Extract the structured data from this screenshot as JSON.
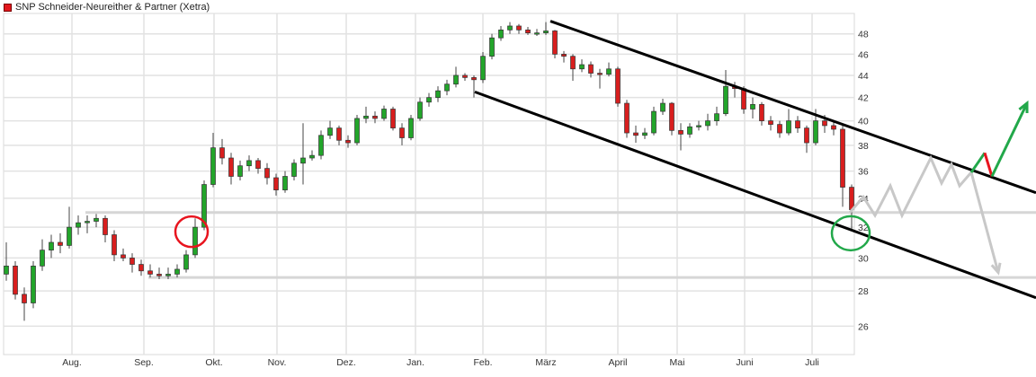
{
  "title": "SNP Schneider-Neureither & Partner (Xetra)",
  "colors": {
    "up": "#22a52a",
    "down": "#d81e1e",
    "grid": "#e2e2e2",
    "channel": "#000000",
    "scenario": "#c8c8c8",
    "bull": "#22a84a",
    "bear_step": "#e8141e",
    "mark_red": "#e8141e",
    "mark_green": "#22a84a"
  },
  "chart_data": {
    "type": "candlestick",
    "title": "SNP Schneider-Neureither & Partner (Xetra)",
    "y_scale": "log",
    "ylim": [
      24.5,
      50.1
    ],
    "y_axis_position": "right",
    "grid": true,
    "y_ticks": [
      "26",
      "28",
      "30",
      "32",
      "34",
      "36",
      "38",
      "40",
      "42",
      "44",
      "46",
      "48"
    ],
    "x_ticks": [
      {
        "label": "Aug.",
        "candle": 7.3
      },
      {
        "label": "Sep.",
        "candle": 15.3
      },
      {
        "label": "Okt.",
        "candle": 23.1
      },
      {
        "label": "Nov.",
        "candle": 30.1
      },
      {
        "label": "Dez.",
        "candle": 37.8
      },
      {
        "label": "Jan.",
        "candle": 45.5
      },
      {
        "label": "Feb.",
        "candle": 53
      },
      {
        "label": "März",
        "candle": 60
      },
      {
        "label": "April",
        "candle": 68
      },
      {
        "label": "Mai",
        "candle": 74.6
      },
      {
        "label": "Juni",
        "candle": 82.1
      },
      {
        "label": "Juli",
        "candle": 89.6
      }
    ],
    "ohlc": [
      [
        29.0,
        31.0,
        28.6,
        29.5
      ],
      [
        29.5,
        29.8,
        27.5,
        27.8
      ],
      [
        27.8,
        28.2,
        26.3,
        27.3
      ],
      [
        27.3,
        29.8,
        27.0,
        29.5
      ],
      [
        29.5,
        31.2,
        29.2,
        30.5
      ],
      [
        30.5,
        31.5,
        30.0,
        31.0
      ],
      [
        31.0,
        31.6,
        30.3,
        30.8
      ],
      [
        30.8,
        33.4,
        30.6,
        32.0
      ],
      [
        32.0,
        32.8,
        31.5,
        32.3
      ],
      [
        32.3,
        32.8,
        31.6,
        32.4
      ],
      [
        32.4,
        32.9,
        32.0,
        32.6
      ],
      [
        32.6,
        32.8,
        31.0,
        31.5
      ],
      [
        31.5,
        31.8,
        29.8,
        30.2
      ],
      [
        30.2,
        30.6,
        29.8,
        30.0
      ],
      [
        30.0,
        30.3,
        29.1,
        29.6
      ],
      [
        29.6,
        29.9,
        28.9,
        29.2
      ],
      [
        29.2,
        29.6,
        28.8,
        29.0
      ],
      [
        29.0,
        29.4,
        28.7,
        28.9
      ],
      [
        28.9,
        29.4,
        28.7,
        29.0
      ],
      [
        29.0,
        29.6,
        28.8,
        29.3
      ],
      [
        29.3,
        30.5,
        29.1,
        30.2
      ],
      [
        30.2,
        32.6,
        30.0,
        32.0
      ],
      [
        32.0,
        35.3,
        31.8,
        35.0
      ],
      [
        35.0,
        39.0,
        34.8,
        37.8
      ],
      [
        37.8,
        38.5,
        36.5,
        37.0
      ],
      [
        37.0,
        37.4,
        35.0,
        35.6
      ],
      [
        35.6,
        36.8,
        35.3,
        36.4
      ],
      [
        36.4,
        37.2,
        36.0,
        36.8
      ],
      [
        36.8,
        37.0,
        35.8,
        36.2
      ],
      [
        36.2,
        36.6,
        35.0,
        35.5
      ],
      [
        35.5,
        35.8,
        34.2,
        34.6
      ],
      [
        34.6,
        36.0,
        34.4,
        35.6
      ],
      [
        35.6,
        36.9,
        35.3,
        36.6
      ],
      [
        36.6,
        39.8,
        35.0,
        37.0
      ],
      [
        37.0,
        37.6,
        36.8,
        37.2
      ],
      [
        37.2,
        39.2,
        36.9,
        38.8
      ],
      [
        38.8,
        40.0,
        38.5,
        39.4
      ],
      [
        39.4,
        39.6,
        38.0,
        38.4
      ],
      [
        38.4,
        38.8,
        37.8,
        38.2
      ],
      [
        38.2,
        40.5,
        38.0,
        40.2
      ],
      [
        40.2,
        41.2,
        39.8,
        40.4
      ],
      [
        40.4,
        40.8,
        39.8,
        40.2
      ],
      [
        40.2,
        41.3,
        40.0,
        41.0
      ],
      [
        41.0,
        41.2,
        39.2,
        39.4
      ],
      [
        39.4,
        39.8,
        38.0,
        38.6
      ],
      [
        38.6,
        40.5,
        38.4,
        40.2
      ],
      [
        40.2,
        42.0,
        40.0,
        41.6
      ],
      [
        41.6,
        42.4,
        41.2,
        42.0
      ],
      [
        42.0,
        43.0,
        41.6,
        42.6
      ],
      [
        42.6,
        43.6,
        42.2,
        43.2
      ],
      [
        43.2,
        44.8,
        42.9,
        44.0
      ],
      [
        44.0,
        44.2,
        43.5,
        43.8
      ],
      [
        43.8,
        44.0,
        42.0,
        43.6
      ],
      [
        43.6,
        46.2,
        43.3,
        45.8
      ],
      [
        45.8,
        48.0,
        45.5,
        47.6
      ],
      [
        47.6,
        48.8,
        47.3,
        48.4
      ],
      [
        48.4,
        49.2,
        48.0,
        48.8
      ],
      [
        48.8,
        49.0,
        48.0,
        48.4
      ],
      [
        48.4,
        48.7,
        47.9,
        48.1
      ],
      [
        48.1,
        48.5,
        47.8,
        48.1
      ],
      [
        48.1,
        49.2,
        47.9,
        48.3
      ],
      [
        48.3,
        48.4,
        45.6,
        46.0
      ],
      [
        46.0,
        46.3,
        45.2,
        45.8
      ],
      [
        45.8,
        46.0,
        43.5,
        44.6
      ],
      [
        44.6,
        45.5,
        44.3,
        45.0
      ],
      [
        45.0,
        45.3,
        43.8,
        44.2
      ],
      [
        44.2,
        44.6,
        42.8,
        44.1
      ],
      [
        44.1,
        45.2,
        43.9,
        44.6
      ],
      [
        44.6,
        44.8,
        41.2,
        41.5
      ],
      [
        41.5,
        41.8,
        38.6,
        39.0
      ],
      [
        39.0,
        39.6,
        38.2,
        38.8
      ],
      [
        38.8,
        39.4,
        38.5,
        39.0
      ],
      [
        39.0,
        41.2,
        38.8,
        40.8
      ],
      [
        40.8,
        41.9,
        40.5,
        41.5
      ],
      [
        41.5,
        41.6,
        38.8,
        39.2
      ],
      [
        39.2,
        39.8,
        37.6,
        38.9
      ],
      [
        38.9,
        39.8,
        38.6,
        39.5
      ],
      [
        39.5,
        40.0,
        39.2,
        39.6
      ],
      [
        39.6,
        40.6,
        39.2,
        40.0
      ],
      [
        40.0,
        41.2,
        39.6,
        40.6
      ],
      [
        40.6,
        44.5,
        40.4,
        43.0
      ],
      [
        43.0,
        43.4,
        42.0,
        42.8
      ],
      [
        42.8,
        43.0,
        40.6,
        41.0
      ],
      [
        41.0,
        42.0,
        40.2,
        41.4
      ],
      [
        41.4,
        41.6,
        39.6,
        40.0
      ],
      [
        40.0,
        40.4,
        39.2,
        39.7
      ],
      [
        39.7,
        40.0,
        38.6,
        39.0
      ],
      [
        39.0,
        41.0,
        38.8,
        40.0
      ],
      [
        40.0,
        40.4,
        39.0,
        39.4
      ],
      [
        39.4,
        39.6,
        37.4,
        38.2
      ],
      [
        38.2,
        41.0,
        38.0,
        40.0
      ],
      [
        40.0,
        40.5,
        39.0,
        39.6
      ],
      [
        39.6,
        40.0,
        38.8,
        39.3
      ],
      [
        39.3,
        39.6,
        33.4,
        34.8
      ],
      [
        34.8,
        35.0,
        31.8,
        33.2
      ]
    ],
    "annotations": {
      "support_lines": [
        {
          "price": 33.0,
          "from_candle": 8.8
        },
        {
          "price": 28.8,
          "from_candle": 15.8
        }
      ],
      "channel_upper": [
        [
          60.5,
          49.3
        ],
        [
          114.5,
          34.4
        ]
      ],
      "channel_lower": [
        [
          52.1,
          42.5
        ],
        [
          114.5,
          27.6
        ]
      ],
      "scenario_path": [
        [
          93.8,
          33.0
        ],
        [
          95.3,
          34.1
        ],
        [
          96.6,
          32.8
        ],
        [
          98.3,
          34.9
        ],
        [
          99.6,
          32.8
        ],
        [
          102.8,
          37.0
        ],
        [
          104,
          35.1
        ],
        [
          105.1,
          36.5
        ],
        [
          106,
          34.9
        ],
        [
          107.3,
          35.9
        ],
        [
          110.3,
          29.1
        ]
      ],
      "bull_step_up": [
        [
          107.3,
          35.9
        ],
        [
          108.8,
          37.4
        ]
      ],
      "bear_step_down": [
        [
          108.8,
          37.4
        ],
        [
          109.6,
          35.6
        ]
      ],
      "bull_breakout": [
        [
          109.6,
          35.6
        ],
        [
          113.5,
          41.5
        ]
      ],
      "circle_red": [
        21,
        31.7
      ],
      "circle_green": [
        93.9,
        31.6
      ]
    }
  }
}
